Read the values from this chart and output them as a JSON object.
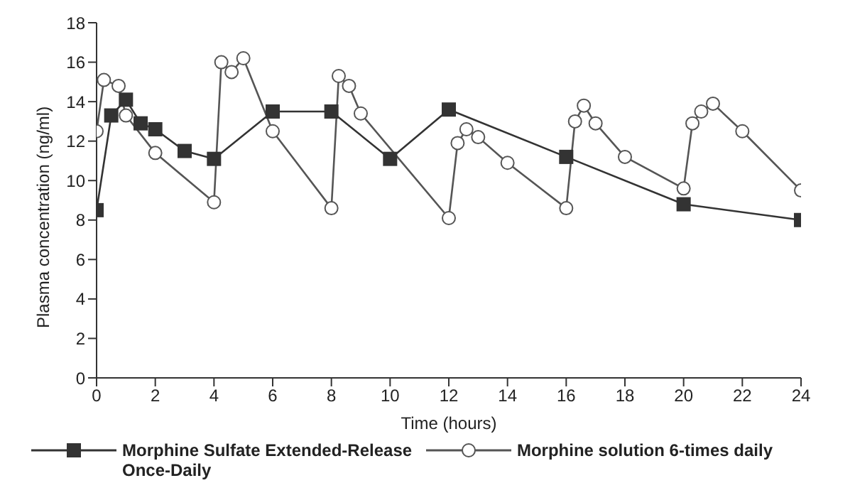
{
  "chart_data": {
    "type": "line",
    "xlabel": "Time (hours)",
    "ylabel": "Plasma concentration (ng/ml)",
    "xlim": [
      0,
      24
    ],
    "xticks": [
      0,
      2,
      4,
      6,
      8,
      10,
      12,
      14,
      16,
      18,
      20,
      22,
      24
    ],
    "ylim": [
      0,
      18
    ],
    "yticks": [
      0,
      2,
      4,
      6,
      8,
      10,
      12,
      14,
      16,
      18
    ],
    "grid": false,
    "legend": "bottom",
    "series": [
      {
        "name": "Morphine Sulfate Extended-Release Once-Daily",
        "color": "#333333",
        "marker": "square",
        "x": [
          0,
          0.5,
          1,
          1.5,
          2,
          3,
          4,
          6,
          8,
          10,
          12,
          16,
          20,
          24
        ],
        "values": [
          8.5,
          13.3,
          14.1,
          12.9,
          12.6,
          11.5,
          11.1,
          13.5,
          13.5,
          11.1,
          13.6,
          11.2,
          8.8,
          8.0
        ]
      },
      {
        "name": "Morphine solution 6-times daily",
        "color": "#555555",
        "marker": "circle",
        "x": [
          0,
          0.25,
          0.75,
          1,
          2,
          4,
          4.25,
          4.6,
          5,
          6,
          8,
          8.25,
          8.6,
          9,
          12,
          12.3,
          12.6,
          13,
          14,
          16,
          16.3,
          16.6,
          17,
          18,
          20,
          20.3,
          20.6,
          21,
          22,
          24
        ],
        "values": [
          12.5,
          15.1,
          14.8,
          13.3,
          11.4,
          8.9,
          16.0,
          15.5,
          16.2,
          12.5,
          8.6,
          15.3,
          14.8,
          13.4,
          8.1,
          11.9,
          12.6,
          12.2,
          10.9,
          8.6,
          13.0,
          13.8,
          12.9,
          11.2,
          9.6,
          12.9,
          13.5,
          13.9,
          12.5,
          9.5
        ]
      }
    ]
  }
}
